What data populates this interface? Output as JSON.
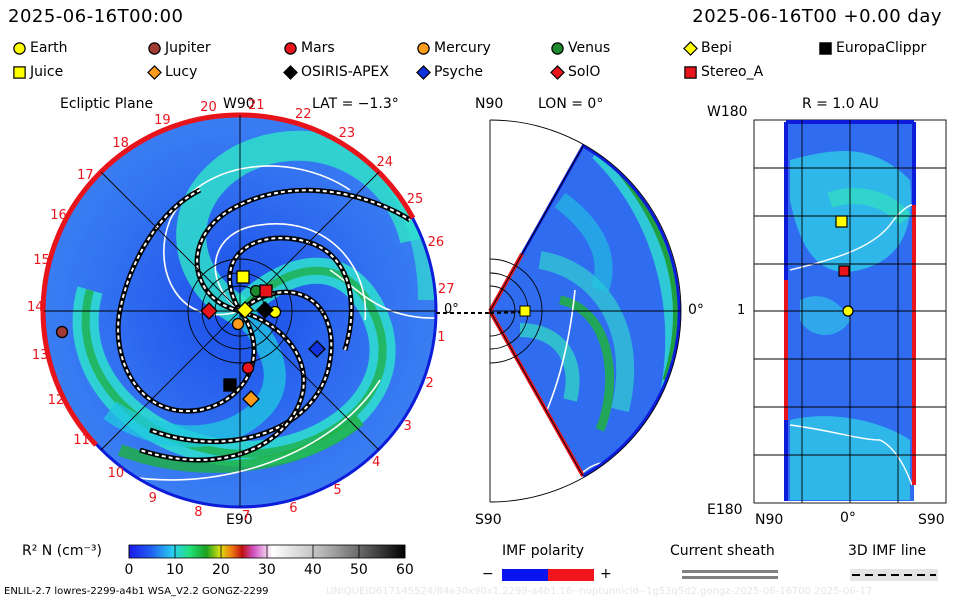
{
  "header": {
    "timestamp": "2025-06-16T00:00",
    "offset": "2025-06-16T00 +0.00 day"
  },
  "legend": [
    {
      "label": "Earth",
      "shape": "circle",
      "color": "#ffff00"
    },
    {
      "label": "Jupiter",
      "shape": "circle",
      "color": "#a23a34"
    },
    {
      "label": "Mars",
      "shape": "circle",
      "color": "#e8141c"
    },
    {
      "label": "Mercury",
      "shape": "circle",
      "color": "#ff9b1a"
    },
    {
      "label": "Venus",
      "shape": "circle",
      "color": "#1e8a2e"
    },
    {
      "label": "Bepi",
      "shape": "diamond",
      "color": "#ffff00"
    },
    {
      "label": "EuropaClippr",
      "shape": "square",
      "color": "#000000"
    },
    {
      "label": "Juice",
      "shape": "square",
      "color": "#ffff00"
    },
    {
      "label": "Lucy",
      "shape": "diamond",
      "color": "#ff9b1a"
    },
    {
      "label": "OSIRIS-APEX",
      "shape": "diamond",
      "color": "#000000"
    },
    {
      "label": "Psyche",
      "shape": "diamond",
      "color": "#1133dd"
    },
    {
      "label": "SolO",
      "shape": "diamond",
      "color": "#e8141c"
    },
    {
      "label": "Stereo_A",
      "shape": "square",
      "color": "#e8141c"
    }
  ],
  "ecliptic": {
    "title": "Ecliptic Plane",
    "top_label": "W90",
    "lat_label": "LAT = −1.3°",
    "bottom_label": "E90",
    "zero_label": "0°",
    "carrington_labels": [
      "20",
      "21",
      "22",
      "23",
      "24",
      "25",
      "26",
      "27",
      "1",
      "2",
      "3",
      "4",
      "5",
      "6",
      "7",
      "8",
      "9",
      "10",
      "11",
      "12",
      "13",
      "14",
      "15",
      "16",
      "17",
      "18",
      "19"
    ]
  },
  "meridional": {
    "top_label": "N90",
    "lon_label": "LON = 0°",
    "bottom_label": "S90",
    "zero_label": "0°"
  },
  "radial": {
    "title": "R = 1.0 AU",
    "top_label": "W180",
    "mid_label": "1",
    "bottom_label": "E180",
    "x_left": "N90",
    "x_mid": "0°",
    "x_right": "S90"
  },
  "colorbar": {
    "label": "R² N (cm⁻³)",
    "ticks": [
      "0",
      "10",
      "20",
      "30",
      "40",
      "50",
      "60"
    ],
    "range": [
      0,
      60
    ]
  },
  "imf": {
    "title": "IMF polarity",
    "minus": "−",
    "plus": "+",
    "neg_color": "#0a14ee",
    "pos_color": "#f0141c"
  },
  "sheath": {
    "title": "Current sheath"
  },
  "imfline": {
    "title": "3D IMF line"
  },
  "footer": {
    "model": "ENLIL-2.7 lowres-2299-a4b1 WSA_V2.2 GONGZ-2299",
    "faded": "UNIQUEID617145524/84a30x90x1.2299-a4b1.16--noptunnicld--1g53q5d2.gongz-2025-06-16T00   2025-06-17"
  },
  "chart_data": {
    "type": "heatmap",
    "quantity": "R² N (cm⁻³)",
    "color_range": [
      0,
      60
    ],
    "bodies_ecliptic": [
      {
        "name": "Earth",
        "marker": "circle"
      },
      {
        "name": "Jupiter",
        "marker": "circle"
      },
      {
        "name": "Mars",
        "marker": "circle"
      },
      {
        "name": "Mercury",
        "marker": "circle"
      },
      {
        "name": "Venus",
        "marker": "circle"
      },
      {
        "name": "Juice",
        "marker": "square"
      },
      {
        "name": "Stereo_A",
        "marker": "square"
      },
      {
        "name": "EuropaClippr",
        "marker": "square"
      },
      {
        "name": "SolO",
        "marker": "diamond"
      },
      {
        "name": "OSIRIS-APEX",
        "marker": "diamond"
      },
      {
        "name": "Psyche",
        "marker": "diamond"
      },
      {
        "name": "Lucy",
        "marker": "diamond"
      },
      {
        "name": "Bepi",
        "marker": "diamond"
      }
    ]
  }
}
